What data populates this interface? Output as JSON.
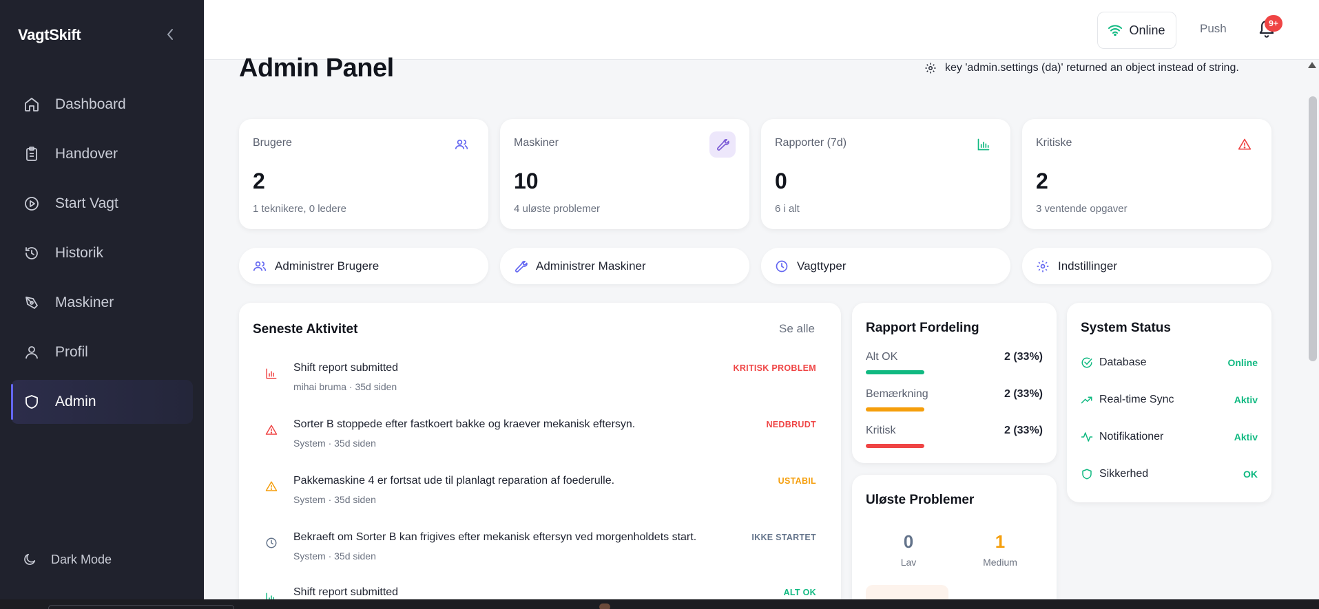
{
  "app": {
    "brand": "VagtSkift"
  },
  "sidebar": {
    "items": [
      {
        "label": "Dashboard",
        "icon": "home-icon"
      },
      {
        "label": "Handover",
        "icon": "clipboard-icon"
      },
      {
        "label": "Start Vagt",
        "icon": "play-circle-icon"
      },
      {
        "label": "Historik",
        "icon": "history-icon"
      },
      {
        "label": "Maskiner",
        "icon": "machine-icon"
      },
      {
        "label": "Profil",
        "icon": "user-icon"
      },
      {
        "label": "Admin",
        "icon": "shield-icon",
        "active": true
      }
    ],
    "dark_mode_label": "Dark Mode"
  },
  "topbar": {
    "online_label": "Online",
    "push_label": "Push",
    "notification_badge": "9+"
  },
  "page": {
    "title": "Admin Panel",
    "settings_note": "key 'admin.settings (da)' returned an object instead of string."
  },
  "stats": [
    {
      "label": "Brugere",
      "value": "2",
      "sub": "1 teknikere, 0 ledere",
      "icon": "users-icon",
      "color": "#6366f1"
    },
    {
      "label": "Maskiner",
      "value": "10",
      "sub": "4 uløste problemer",
      "icon": "wrench-icon",
      "color": "#7c5cd6"
    },
    {
      "label": "Rapporter (7d)",
      "value": "0",
      "sub": "6 i alt",
      "icon": "bar-chart-icon",
      "color": "#10b981"
    },
    {
      "label": "Kritiske",
      "value": "2",
      "sub": "3 ventende opgaver",
      "icon": "alert-triangle-icon",
      "color": "#ef4444"
    }
  ],
  "quick_actions": [
    {
      "label": "Administrer Brugere",
      "icon": "users-icon"
    },
    {
      "label": "Administrer Maskiner",
      "icon": "wrench-icon"
    },
    {
      "label": "Vagttyper",
      "icon": "clock-icon"
    },
    {
      "label": "Indstillinger",
      "icon": "gear-icon"
    }
  ],
  "activity": {
    "title": "Seneste Aktivitet",
    "see_all": "Se alle",
    "items": [
      {
        "title": "Shift report submitted",
        "author": "mihai bruma",
        "sep": "·",
        "time": "35d siden",
        "tag": "KRITISK PROBLEM",
        "tag_color": "#ef4444",
        "icon": "bar-chart-icon",
        "icon_color": "#ef4444"
      },
      {
        "title": "Sorter B stoppede efter fastkoert bakke og kraever mekanisk eftersyn.",
        "author": "System",
        "sep": "·",
        "time": "35d siden",
        "tag": "NEDBRUDT",
        "tag_color": "#ef4444",
        "icon": "alert-triangle-icon",
        "icon_color": "#ef4444"
      },
      {
        "title": "Pakkemaskine 4 er fortsat ude til planlagt reparation af foederulle.",
        "author": "System",
        "sep": "·",
        "time": "35d siden",
        "tag": "USTABIL",
        "tag_color": "#f59e0b",
        "icon": "alert-triangle-icon",
        "icon_color": "#f59e0b"
      },
      {
        "title": "Bekraeft om Sorter B kan frigives efter mekanisk eftersyn ved morgenholdets start.",
        "author": "System",
        "sep": "·",
        "time": "35d siden",
        "tag": "IKKE STARTET",
        "tag_color": "#64748b",
        "icon": "clock-icon",
        "icon_color": "#64748b"
      },
      {
        "title": "Shift report submitted",
        "author": "",
        "sep": "",
        "time": "",
        "tag": "ALT OK",
        "tag_color": "#10b981",
        "icon": "bar-chart-icon",
        "icon_color": "#10b981"
      }
    ]
  },
  "rapport": {
    "title": "Rapport Fordeling",
    "rows": [
      {
        "label": "Alt OK",
        "value": "2 (33%)",
        "color": "#10b981"
      },
      {
        "label": "Bemærkning",
        "value": "2 (33%)",
        "color": "#f59e0b"
      },
      {
        "label": "Kritisk",
        "value": "2 (33%)",
        "color": "#ef4444"
      }
    ]
  },
  "uloste": {
    "title": "Uløste Problemer",
    "cols": [
      {
        "value": "0",
        "label": "Lav",
        "color": "#64748b"
      },
      {
        "value": "1",
        "label": "Medium",
        "color": "#f59e0b"
      }
    ]
  },
  "system_status": {
    "title": "System Status",
    "rows": [
      {
        "label": "Database",
        "value": "Online",
        "icon": "check-circle-icon"
      },
      {
        "label": "Real-time Sync",
        "value": "Aktiv",
        "icon": "trending-up-icon"
      },
      {
        "label": "Notifikationer",
        "value": "Aktiv",
        "icon": "activity-icon"
      },
      {
        "label": "Sikkerhed",
        "value": "OK",
        "icon": "shield-icon"
      }
    ]
  }
}
